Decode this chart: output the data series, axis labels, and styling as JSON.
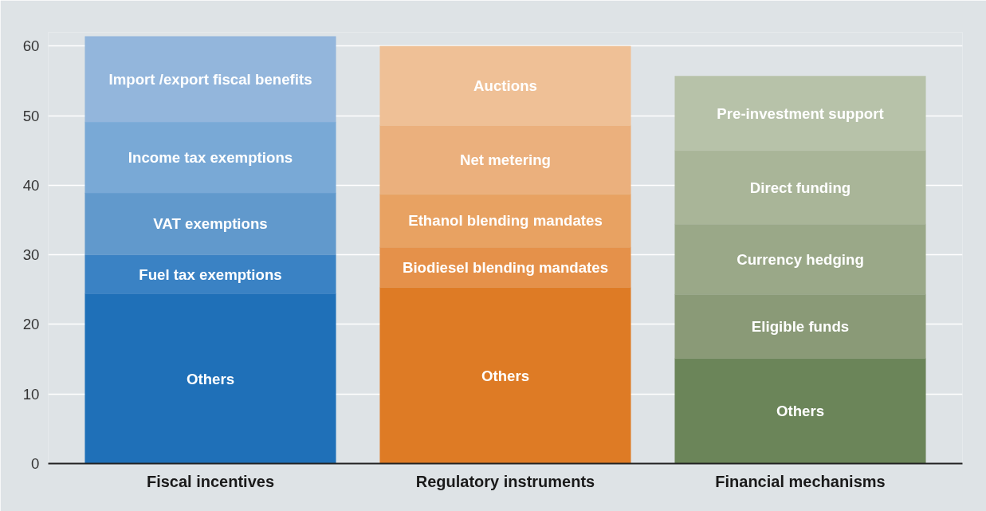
{
  "chart_data": {
    "type": "bar",
    "stacked": true,
    "categories": [
      "Fiscal incentives",
      "Regulatory instruments",
      "Financial mechanisms"
    ],
    "series": [
      {
        "colors": [
          "#1f70b8",
          "#de7b25",
          "#6b8559"
        ],
        "values": [
          24.4,
          25.3,
          15.1
        ],
        "value_labels": [
          "Others",
          "Others",
          "Others"
        ]
      },
      {
        "colors": [
          "#3a82c4",
          "#e5914a",
          "#8a9a77"
        ],
        "values": [
          5.6,
          5.8,
          9.2
        ],
        "value_labels": [
          "Fuel tax exemptions",
          "Biodiesel blending mandates",
          "Eligible funds"
        ]
      },
      {
        "colors": [
          "#6199cc",
          "#e8a262",
          "#9aa888"
        ],
        "values": [
          8.9,
          7.6,
          10.1
        ],
        "value_labels": [
          "VAT exemptions",
          "Ethanol blending mandates",
          "Currency hedging"
        ]
      },
      {
        "colors": [
          "#79a9d6",
          "#ebb07d",
          "#a9b598"
        ],
        "values": [
          10.2,
          9.9,
          10.6
        ],
        "value_labels": [
          "Income tax exemptions",
          "Net metering",
          "Direct funding"
        ]
      },
      {
        "colors": [
          "#93b6dc",
          "#efc096",
          "#b7c2a9"
        ],
        "values": [
          12.3,
          11.4,
          10.7
        ],
        "value_labels": [
          "Import /export fiscal benefits",
          "Auctions",
          "Pre-investment support"
        ]
      }
    ],
    "ylim": [
      0,
      62
    ],
    "yticks": [
      0,
      10,
      20,
      30,
      40,
      50,
      60
    ],
    "grid": "y"
  }
}
